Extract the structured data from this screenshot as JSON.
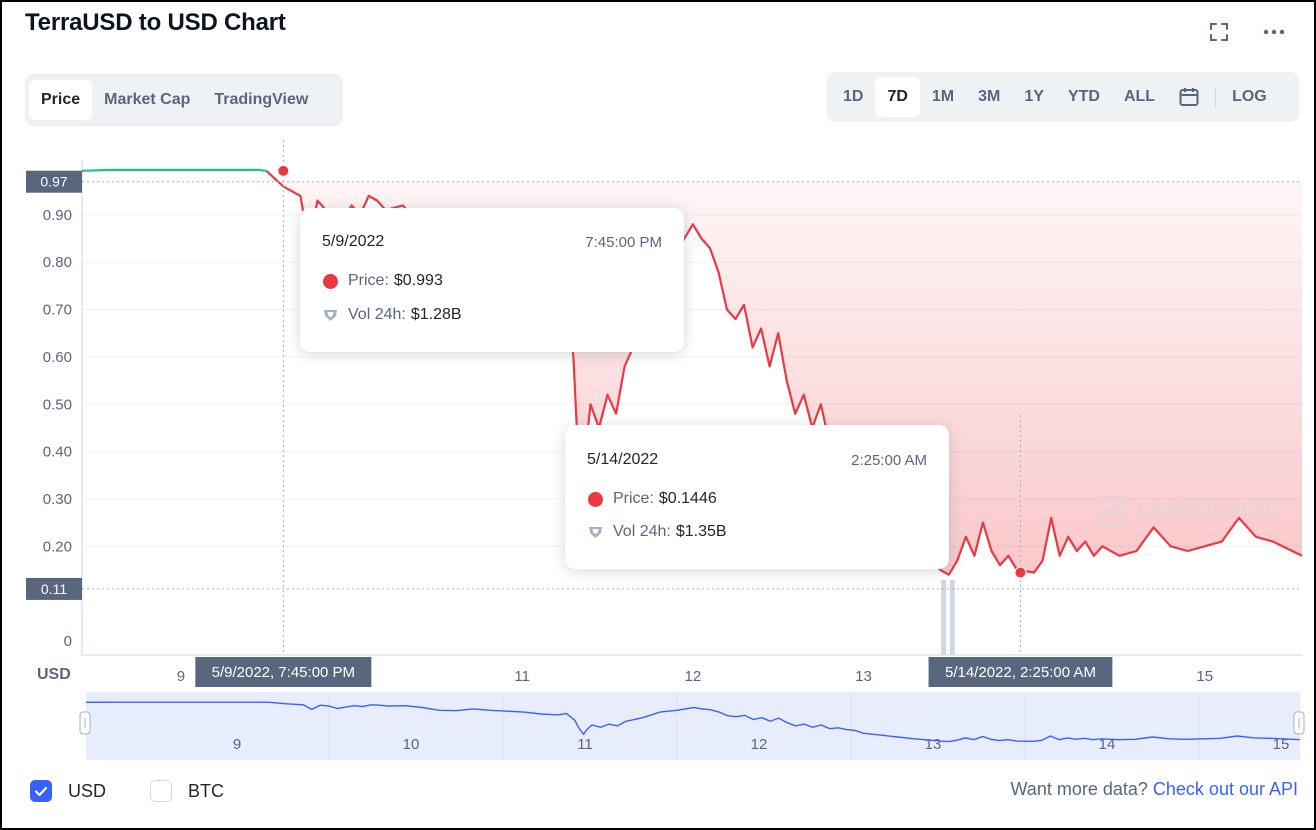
{
  "header": {
    "title": "TerraUSD to USD Chart",
    "fullscreen_icon": "expand-icon",
    "more_icon": "more-dots-icon"
  },
  "tabs": [
    {
      "label": "Price",
      "active": true
    },
    {
      "label": "Market Cap",
      "active": false
    },
    {
      "label": "TradingView",
      "active": false
    }
  ],
  "ranges": [
    {
      "label": "1D"
    },
    {
      "label": "7D",
      "active": true
    },
    {
      "label": "1M"
    },
    {
      "label": "3M"
    },
    {
      "label": "1Y"
    },
    {
      "label": "YTD"
    },
    {
      "label": "ALL"
    }
  ],
  "calendar_icon": "calendar-icon",
  "log_label": "LOG",
  "chart_data": {
    "type": "line",
    "title": "TerraUSD to USD Chart",
    "ylabel": "USD",
    "ylim": [
      0,
      1.0
    ],
    "y_ticks": [
      "0",
      "0.20",
      "0.30",
      "0.40",
      "0.50",
      "0.60",
      "0.70",
      "0.80",
      "0.90"
    ],
    "y_ticks_values": [
      0,
      0.2,
      0.3,
      0.4,
      0.5,
      0.6,
      0.7,
      0.8,
      0.9
    ],
    "x_ticks": [
      {
        "label": "9",
        "value": 9
      },
      {
        "label": "11",
        "value": 11
      },
      {
        "label": "12",
        "value": 12
      },
      {
        "label": "13",
        "value": 13
      },
      {
        "label": "15",
        "value": 15
      }
    ],
    "xlim": [
      8.42,
      15.57
    ],
    "price_markers": [
      {
        "label": "0.97",
        "value": 0.97
      },
      {
        "label": "0.11",
        "value": 0.11
      }
    ],
    "colors": {
      "up": "#16c784",
      "down": "#ea3943",
      "nav": "#3861fb"
    },
    "series": [
      {
        "x": [
          8.42,
          8.6,
          8.8,
          9.0,
          9.2,
          9.45,
          9.5,
          9.6,
          9.7,
          9.75,
          9.8,
          9.85,
          9.9,
          9.95,
          10.0,
          10.05,
          10.1,
          10.15,
          10.2,
          10.3,
          10.4,
          10.5,
          10.6,
          10.7,
          10.8,
          10.9,
          11.0,
          11.1,
          11.15,
          11.2,
          11.25,
          11.3,
          11.32,
          11.35,
          11.37,
          11.4,
          11.45,
          11.5,
          11.55,
          11.6,
          11.65,
          11.7,
          11.75,
          11.8,
          11.9,
          12.0,
          12.05,
          12.1,
          12.15,
          12.2,
          12.25,
          12.3,
          12.35,
          12.4,
          12.45,
          12.5,
          12.55,
          12.6,
          12.65,
          12.7,
          12.75,
          12.8,
          12.85,
          12.9,
          12.95,
          13.0,
          13.1,
          13.2,
          13.3,
          13.45,
          13.5,
          13.55,
          13.6,
          13.65,
          13.7,
          13.75,
          13.8,
          13.85,
          13.9,
          14.0,
          14.05,
          14.1,
          14.15,
          14.2,
          14.25,
          14.3,
          14.35,
          14.4,
          14.5,
          14.6,
          14.7,
          14.8,
          14.9,
          15.0,
          15.1,
          15.2,
          15.3,
          15.4,
          15.57
        ],
        "values": [
          0.993,
          0.995,
          0.995,
          0.995,
          0.995,
          0.995,
          0.993,
          0.96,
          0.94,
          0.84,
          0.93,
          0.91,
          0.86,
          0.89,
          0.92,
          0.9,
          0.94,
          0.93,
          0.91,
          0.92,
          0.88,
          0.82,
          0.81,
          0.85,
          0.82,
          0.8,
          0.78,
          0.74,
          0.73,
          0.72,
          0.75,
          0.6,
          0.45,
          0.3,
          0.4,
          0.5,
          0.45,
          0.52,
          0.48,
          0.58,
          0.62,
          0.66,
          0.72,
          0.78,
          0.82,
          0.88,
          0.85,
          0.83,
          0.78,
          0.7,
          0.68,
          0.71,
          0.62,
          0.66,
          0.58,
          0.65,
          0.55,
          0.48,
          0.52,
          0.45,
          0.5,
          0.42,
          0.44,
          0.4,
          0.38,
          0.32,
          0.28,
          0.24,
          0.2,
          0.15,
          0.14,
          0.17,
          0.22,
          0.18,
          0.25,
          0.19,
          0.16,
          0.18,
          0.15,
          0.1446,
          0.17,
          0.26,
          0.18,
          0.22,
          0.19,
          0.21,
          0.18,
          0.2,
          0.18,
          0.19,
          0.24,
          0.2,
          0.19,
          0.2,
          0.21,
          0.26,
          0.22,
          0.21,
          0.18
        ]
      }
    ],
    "x_markers": [
      {
        "label": "5/9/2022, 7:45:00 PM",
        "value": 9.6
      },
      {
        "label": "5/14/2022, 2:25:00 AM",
        "value": 13.92
      }
    ],
    "tooltips": [
      {
        "date": "5/9/2022",
        "time": "7:45:00 PM",
        "price_label": "Price:",
        "price": "$0.993",
        "vol_label": "Vol 24h:",
        "vol": "$1.28B"
      },
      {
        "date": "5/14/2022",
        "time": "2:25:00 AM",
        "price_label": "Price:",
        "price": "$0.1446",
        "vol_label": "Vol 24h:",
        "vol": "$1.35B"
      }
    ],
    "navigator": {
      "ticks": [
        {
          "label": "9"
        },
        {
          "label": "10"
        },
        {
          "label": "11"
        },
        {
          "label": "12"
        },
        {
          "label": "13"
        },
        {
          "label": "14"
        },
        {
          "label": "15"
        }
      ]
    },
    "watermark": "CoinMarketCap"
  },
  "footer": {
    "usd_label": "USD",
    "usd_checked": true,
    "btc_label": "BTC",
    "btc_checked": false,
    "api_text": "Want more data?",
    "api_link": "Check out our API"
  }
}
